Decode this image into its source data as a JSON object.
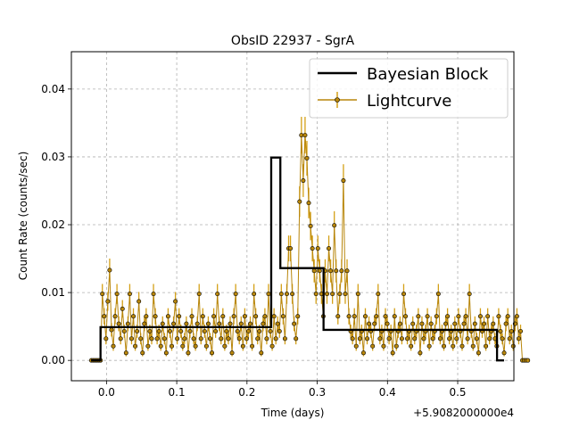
{
  "chart_data": {
    "type": "line",
    "title": "ObsID 22937 - SgrA",
    "xlabel": "Time (days)",
    "ylabel": "Count Rate (counts/sec)",
    "x_offset_label": "+5.9082000000e4",
    "xlim": [
      -0.05,
      0.58
    ],
    "ylim": [
      -0.003,
      0.0455
    ],
    "xticks": [
      0.0,
      0.1,
      0.2,
      0.3,
      0.4,
      0.5
    ],
    "xtick_labels": [
      "0.0",
      "0.1",
      "0.2",
      "0.3",
      "0.4",
      "0.5"
    ],
    "yticks": [
      0.0,
      0.01,
      0.02,
      0.03,
      0.04
    ],
    "ytick_labels": [
      "0.00",
      "0.01",
      "0.02",
      "0.03",
      "0.04"
    ],
    "grid": true,
    "legend_position": "top-right",
    "colors": {
      "lightcurve": "#d4a017",
      "marker_face": "#b8860b",
      "blocks": "#000000",
      "grid": "#b0b0b0"
    },
    "series": [
      {
        "name": "Bayesian Block",
        "style": "step",
        "segments": [
          {
            "x_start": -0.0215,
            "x_end": -0.0085,
            "y": 0.0
          },
          {
            "x_start": -0.0085,
            "x_end": 0.2345,
            "y": 0.0049
          },
          {
            "x_start": 0.2345,
            "x_end": 0.2475,
            "y": 0.0299
          },
          {
            "x_start": 0.2475,
            "x_end": 0.309,
            "y": 0.0136
          },
          {
            "x_start": 0.309,
            "x_end": 0.556,
            "y": 0.0045
          },
          {
            "x_start": 0.556,
            "x_end": 0.566,
            "y": 0.0
          }
        ]
      },
      {
        "name": "Lightcurve",
        "style": "errorbar",
        "x_start": -0.0215,
        "x_step": 0.0026,
        "y": [
          0.0,
          0.0,
          0.0,
          0.0,
          0.0,
          0.0,
          0.0098,
          0.0065,
          0.0032,
          0.0087,
          0.0133,
          0.0045,
          0.0021,
          0.0065,
          0.0098,
          0.0054,
          0.0032,
          0.0076,
          0.0043,
          0.0011,
          0.0054,
          0.0098,
          0.0032,
          0.0065,
          0.0021,
          0.0043,
          0.0087,
          0.0032,
          0.0011,
          0.0054,
          0.0065,
          0.0021,
          0.0043,
          0.0032,
          0.0098,
          0.0065,
          0.0032,
          0.0043,
          0.0021,
          0.0054,
          0.0032,
          0.0011,
          0.0065,
          0.0043,
          0.0021,
          0.0054,
          0.0087,
          0.0032,
          0.0065,
          0.0043,
          0.0021,
          0.0032,
          0.0054,
          0.0011,
          0.0043,
          0.0065,
          0.0032,
          0.0021,
          0.0054,
          0.0098,
          0.0032,
          0.0065,
          0.0043,
          0.0021,
          0.0054,
          0.0032,
          0.0011,
          0.0065,
          0.0043,
          0.0098,
          0.0054,
          0.0032,
          0.0065,
          0.0021,
          0.0043,
          0.0032,
          0.0054,
          0.0011,
          0.0065,
          0.0098,
          0.0043,
          0.0032,
          0.0054,
          0.0021,
          0.0065,
          0.0032,
          0.0043,
          0.0054,
          0.0021,
          0.0098,
          0.0065,
          0.0032,
          0.0043,
          0.0011,
          0.0054,
          0.0065,
          0.0032,
          0.0098,
          0.0043,
          0.0021,
          0.0065,
          0.0032,
          0.0054,
          0.0043,
          0.0098,
          0.0065,
          0.0032,
          0.0098,
          0.0165,
          0.0165,
          0.0098,
          0.0054,
          0.0032,
          0.0065,
          0.0234,
          0.0332,
          0.0265,
          0.0332,
          0.0298,
          0.0232,
          0.0198,
          0.0165,
          0.0132,
          0.0098,
          0.0165,
          0.0132,
          0.0098,
          0.0065,
          0.0132,
          0.0098,
          0.0165,
          0.0132,
          0.0098,
          0.0199,
          0.0132,
          0.0065,
          0.0098,
          0.0132,
          0.0265,
          0.0098,
          0.0132,
          0.0065,
          0.0043,
          0.0032,
          0.0065,
          0.0021,
          0.0098,
          0.0032,
          0.0043,
          0.0011,
          0.0065,
          0.0032,
          0.0054,
          0.0043,
          0.0021,
          0.0054,
          0.0065,
          0.0098,
          0.0032,
          0.0043,
          0.0021,
          0.0065,
          0.0054,
          0.0032,
          0.0043,
          0.0011,
          0.0065,
          0.0021,
          0.0043,
          0.0054,
          0.0032,
          0.0098,
          0.0065,
          0.0032,
          0.0043,
          0.0021,
          0.0054,
          0.0032,
          0.0043,
          0.0065,
          0.0011,
          0.0054,
          0.0032,
          0.0043,
          0.0065,
          0.0021,
          0.0054,
          0.0032,
          0.0043,
          0.0065,
          0.0098,
          0.0032,
          0.0043,
          0.0021,
          0.0054,
          0.0065,
          0.0032,
          0.0043,
          0.0021,
          0.0054,
          0.0032,
          0.0065,
          0.0043,
          0.0021,
          0.0054,
          0.0065,
          0.0032,
          0.0098,
          0.0043,
          0.0021,
          0.0054,
          0.0032,
          0.0011,
          0.0065,
          0.0043,
          0.0054,
          0.0021,
          0.0065,
          0.0032,
          0.0043,
          0.0054,
          0.0032,
          0.0021,
          0.0065,
          0.0043,
          0.0032,
          0.0011,
          0.0054,
          0.0065,
          0.0032,
          0.0043,
          0.0021,
          0.0054,
          0.0065,
          0.0032,
          0.0043,
          0.0,
          0.0,
          0.0,
          0.0
        ]
      }
    ]
  }
}
